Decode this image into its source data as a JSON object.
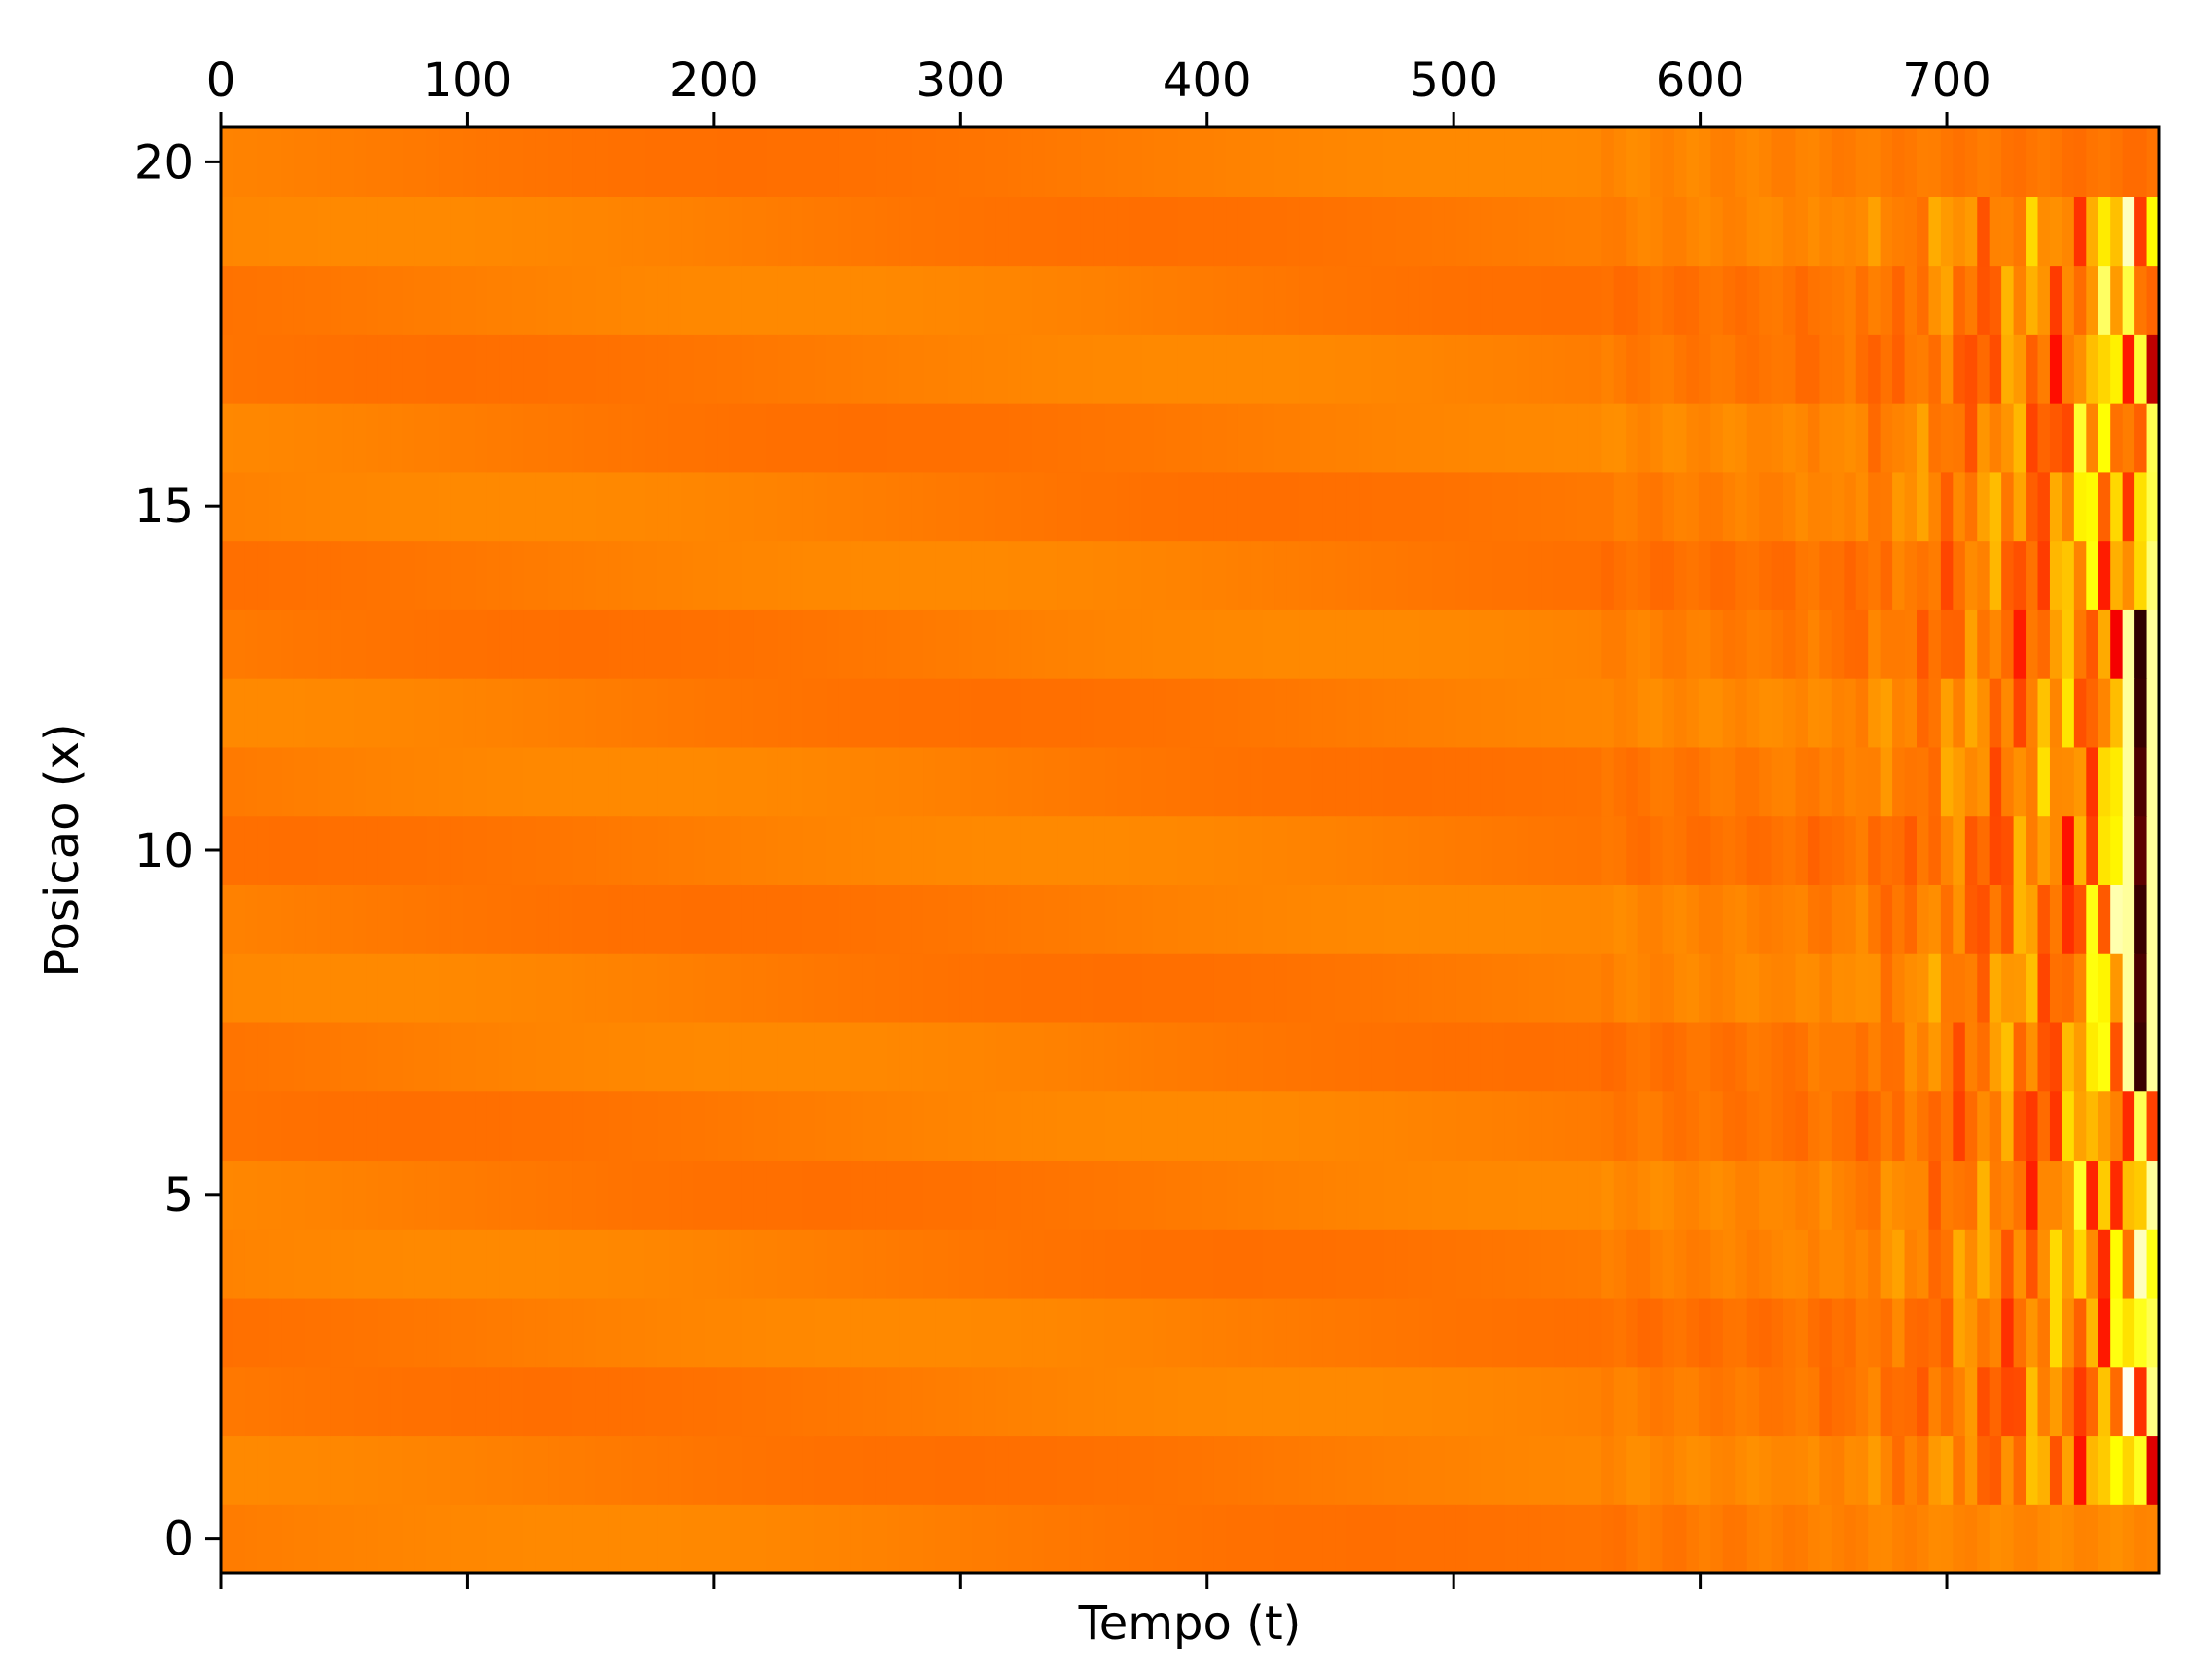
{
  "chart_data": {
    "type": "heatmap",
    "title": "",
    "xlabel": "Tempo (t)",
    "ylabel": "Posicao (x)",
    "xlim": [
      0,
      786
    ],
    "ylim": [
      -0.5,
      20.5
    ],
    "x_ticks": [
      0,
      100,
      200,
      300,
      400,
      500,
      600,
      700
    ],
    "x_tick_labels": [
      "0",
      "100",
      "200",
      "300",
      "400",
      "500",
      "600",
      "700"
    ],
    "x_tick_labels_position": "top",
    "y_ticks": [
      0,
      5,
      10,
      15,
      20
    ],
    "y_tick_labels": [
      "0",
      "5",
      "10",
      "15",
      "20"
    ],
    "rows": 21,
    "grid": false,
    "colormap": "hot",
    "colors": {
      "base": "#ff6000",
      "mid": "#ff4a00",
      "bright": "#ffe600",
      "dark": "#1a0000"
    },
    "description_values": {
      "baseline_value": 0.55,
      "instability_onset_t": 600,
      "strong_oscillation_t": 740,
      "edge_rows_stable": [
        0,
        20
      ]
    }
  }
}
